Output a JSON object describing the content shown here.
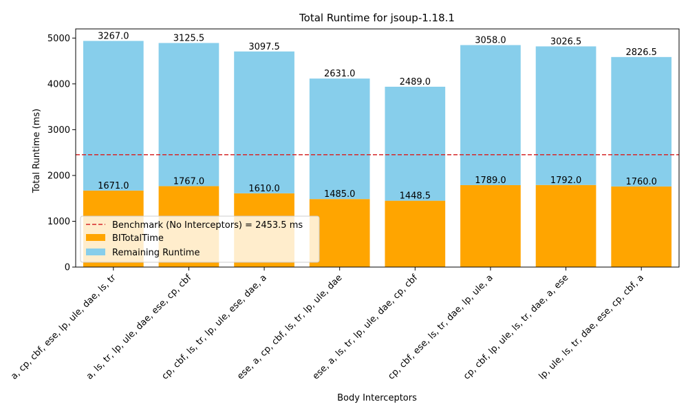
{
  "chart_data": {
    "type": "bar",
    "stacked": true,
    "title": "Total Runtime for jsoup-1.18.1",
    "xlabel": "Body Interceptors",
    "ylabel": "Total Runtime (ms)",
    "ylim": [
      0,
      5200
    ],
    "yticks": [
      0,
      1000,
      2000,
      3000,
      4000,
      5000
    ],
    "grid": false,
    "legend_position": "lower-left",
    "categories": [
      "a, cp, cbf, ese, lp, ule, dae, ls, tr",
      "a, ls, tr, lp, ule, dae, ese, cp, cbf",
      "cp, cbf, ls, tr, lp, ule, ese, dae, a",
      "ese, a, cp, cbf, ls, tr, lp, ule, dae",
      "ese, a, ls, tr, lp, ule, dae, cp, cbf",
      "cp, cbf, ese, ls, tr, dae, lp, ule, a",
      "cp, cbf, lp, ule, ls, tr, dae, a, ese",
      "lp, ule, ls, tr, dae, ese, cp, cbf, a"
    ],
    "series": [
      {
        "name": "BITotalTime",
        "color": "#ffa500",
        "values": [
          1671.0,
          1767.0,
          1610.0,
          1485.0,
          1448.5,
          1789.0,
          1792.0,
          1760.0
        ],
        "labels": [
          "1671.0",
          "1767.0",
          "1610.0",
          "1485.0",
          "1448.5",
          "1789.0",
          "1792.0",
          "1760.0"
        ]
      },
      {
        "name": "Remaining Runtime",
        "color": "#87ceeb",
        "values": [
          3267.0,
          3125.5,
          3097.5,
          2631.0,
          2489.0,
          3058.0,
          3026.5,
          2826.5
        ],
        "labels": [
          "3267.0",
          "3125.5",
          "3097.5",
          "2631.0",
          "2489.0",
          "3058.0",
          "3026.5",
          "2826.5"
        ]
      }
    ],
    "benchmark": {
      "label": "Benchmark (No Interceptors) = 2453.5 ms",
      "value": 2453.5,
      "color": "#d62728",
      "style": "dashed"
    }
  }
}
